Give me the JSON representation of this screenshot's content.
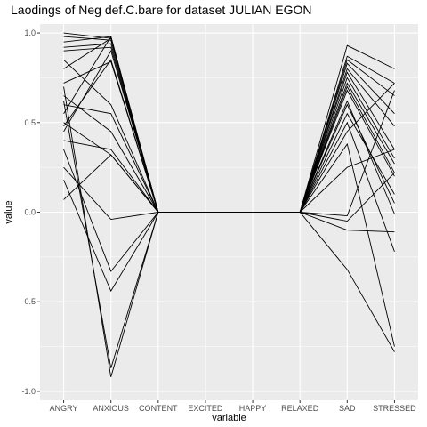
{
  "chart_data": {
    "type": "line",
    "title": "Laodings of Neg def.C.bare for dataset JULIAN EGON",
    "xlabel": "variable",
    "ylabel": "value",
    "categories": [
      "ANGRY",
      "ANXIOUS",
      "CONTENT",
      "EXCITED",
      "HAPPY",
      "RELAXED",
      "SAD",
      "STRESSED"
    ],
    "ylim": [
      -1.0,
      1.0
    ],
    "yticks": [
      -1.0,
      -0.5,
      0.0,
      0.5,
      1.0
    ],
    "ytick_labels": [
      "-1.0",
      "-0.5",
      "0.0",
      "0.5",
      "1.0"
    ],
    "grid": true,
    "background": "#ebebeb",
    "gridline_color": "#ffffff",
    "line_color": "#000000",
    "series": [
      {
        "values": [
          1.0,
          0.97,
          0,
          0,
          0,
          0,
          0.93,
          0.8
        ]
      },
      {
        "values": [
          0.98,
          0.96,
          0,
          0,
          0,
          0,
          0.87,
          0.72
        ]
      },
      {
        "values": [
          0.95,
          0.98,
          0,
          0,
          0,
          0,
          0.85,
          0.65
        ]
      },
      {
        "values": [
          0.92,
          0.94,
          0,
          0,
          0,
          0,
          0.83,
          0.55
        ]
      },
      {
        "values": [
          0.9,
          0.92,
          0,
          0,
          0,
          0,
          0.8,
          0.48
        ]
      },
      {
        "values": [
          0.8,
          0.97,
          0,
          0,
          0,
          0,
          0.78,
          0.35
        ]
      },
      {
        "values": [
          0.72,
          0.84,
          0,
          0,
          0,
          0,
          0.75,
          0.3
        ]
      },
      {
        "values": [
          0.65,
          0.45,
          0,
          0,
          0,
          0,
          0.72,
          0.27
        ]
      },
      {
        "values": [
          0.6,
          0.55,
          0,
          0,
          0,
          0,
          0.7,
          0.22
        ]
      },
      {
        "values": [
          0.55,
          0.98,
          0,
          0,
          0,
          0,
          0.68,
          0.2
        ]
      },
      {
        "values": [
          0.5,
          0.32,
          0,
          0,
          0,
          0,
          0.62,
          -0.01
        ]
      },
      {
        "values": [
          0.45,
          0.9,
          0,
          0,
          0,
          0,
          0.6,
          0.05
        ]
      },
      {
        "values": [
          0.4,
          0.35,
          0,
          0,
          0,
          0,
          0.55,
          0.1
        ]
      },
      {
        "values": [
          0.35,
          -0.33,
          0,
          0,
          0,
          0,
          0.5,
          -0.22
        ]
      },
      {
        "values": [
          0.25,
          -0.04,
          0,
          0,
          0,
          0,
          0.45,
          0.72
        ]
      },
      {
        "values": [
          0.18,
          -0.44,
          0,
          0,
          0,
          0,
          0.38,
          -0.75
        ]
      },
      {
        "values": [
          0.07,
          0.32,
          0,
          0,
          0,
          0,
          0.25,
          0.35
        ]
      },
      {
        "values": [
          0.7,
          -0.92,
          0,
          0,
          0,
          0,
          -0.02,
          0.68
        ]
      },
      {
        "values": [
          0.62,
          -0.87,
          0,
          0,
          0,
          0,
          -0.05,
          0.22
        ]
      },
      {
        "values": [
          0.48,
          0.85,
          0,
          0,
          0,
          0,
          -0.1,
          -0.11
        ]
      },
      {
        "values": [
          0.85,
          0.6,
          0,
          0,
          0,
          0,
          -0.32,
          -0.78
        ]
      }
    ]
  }
}
